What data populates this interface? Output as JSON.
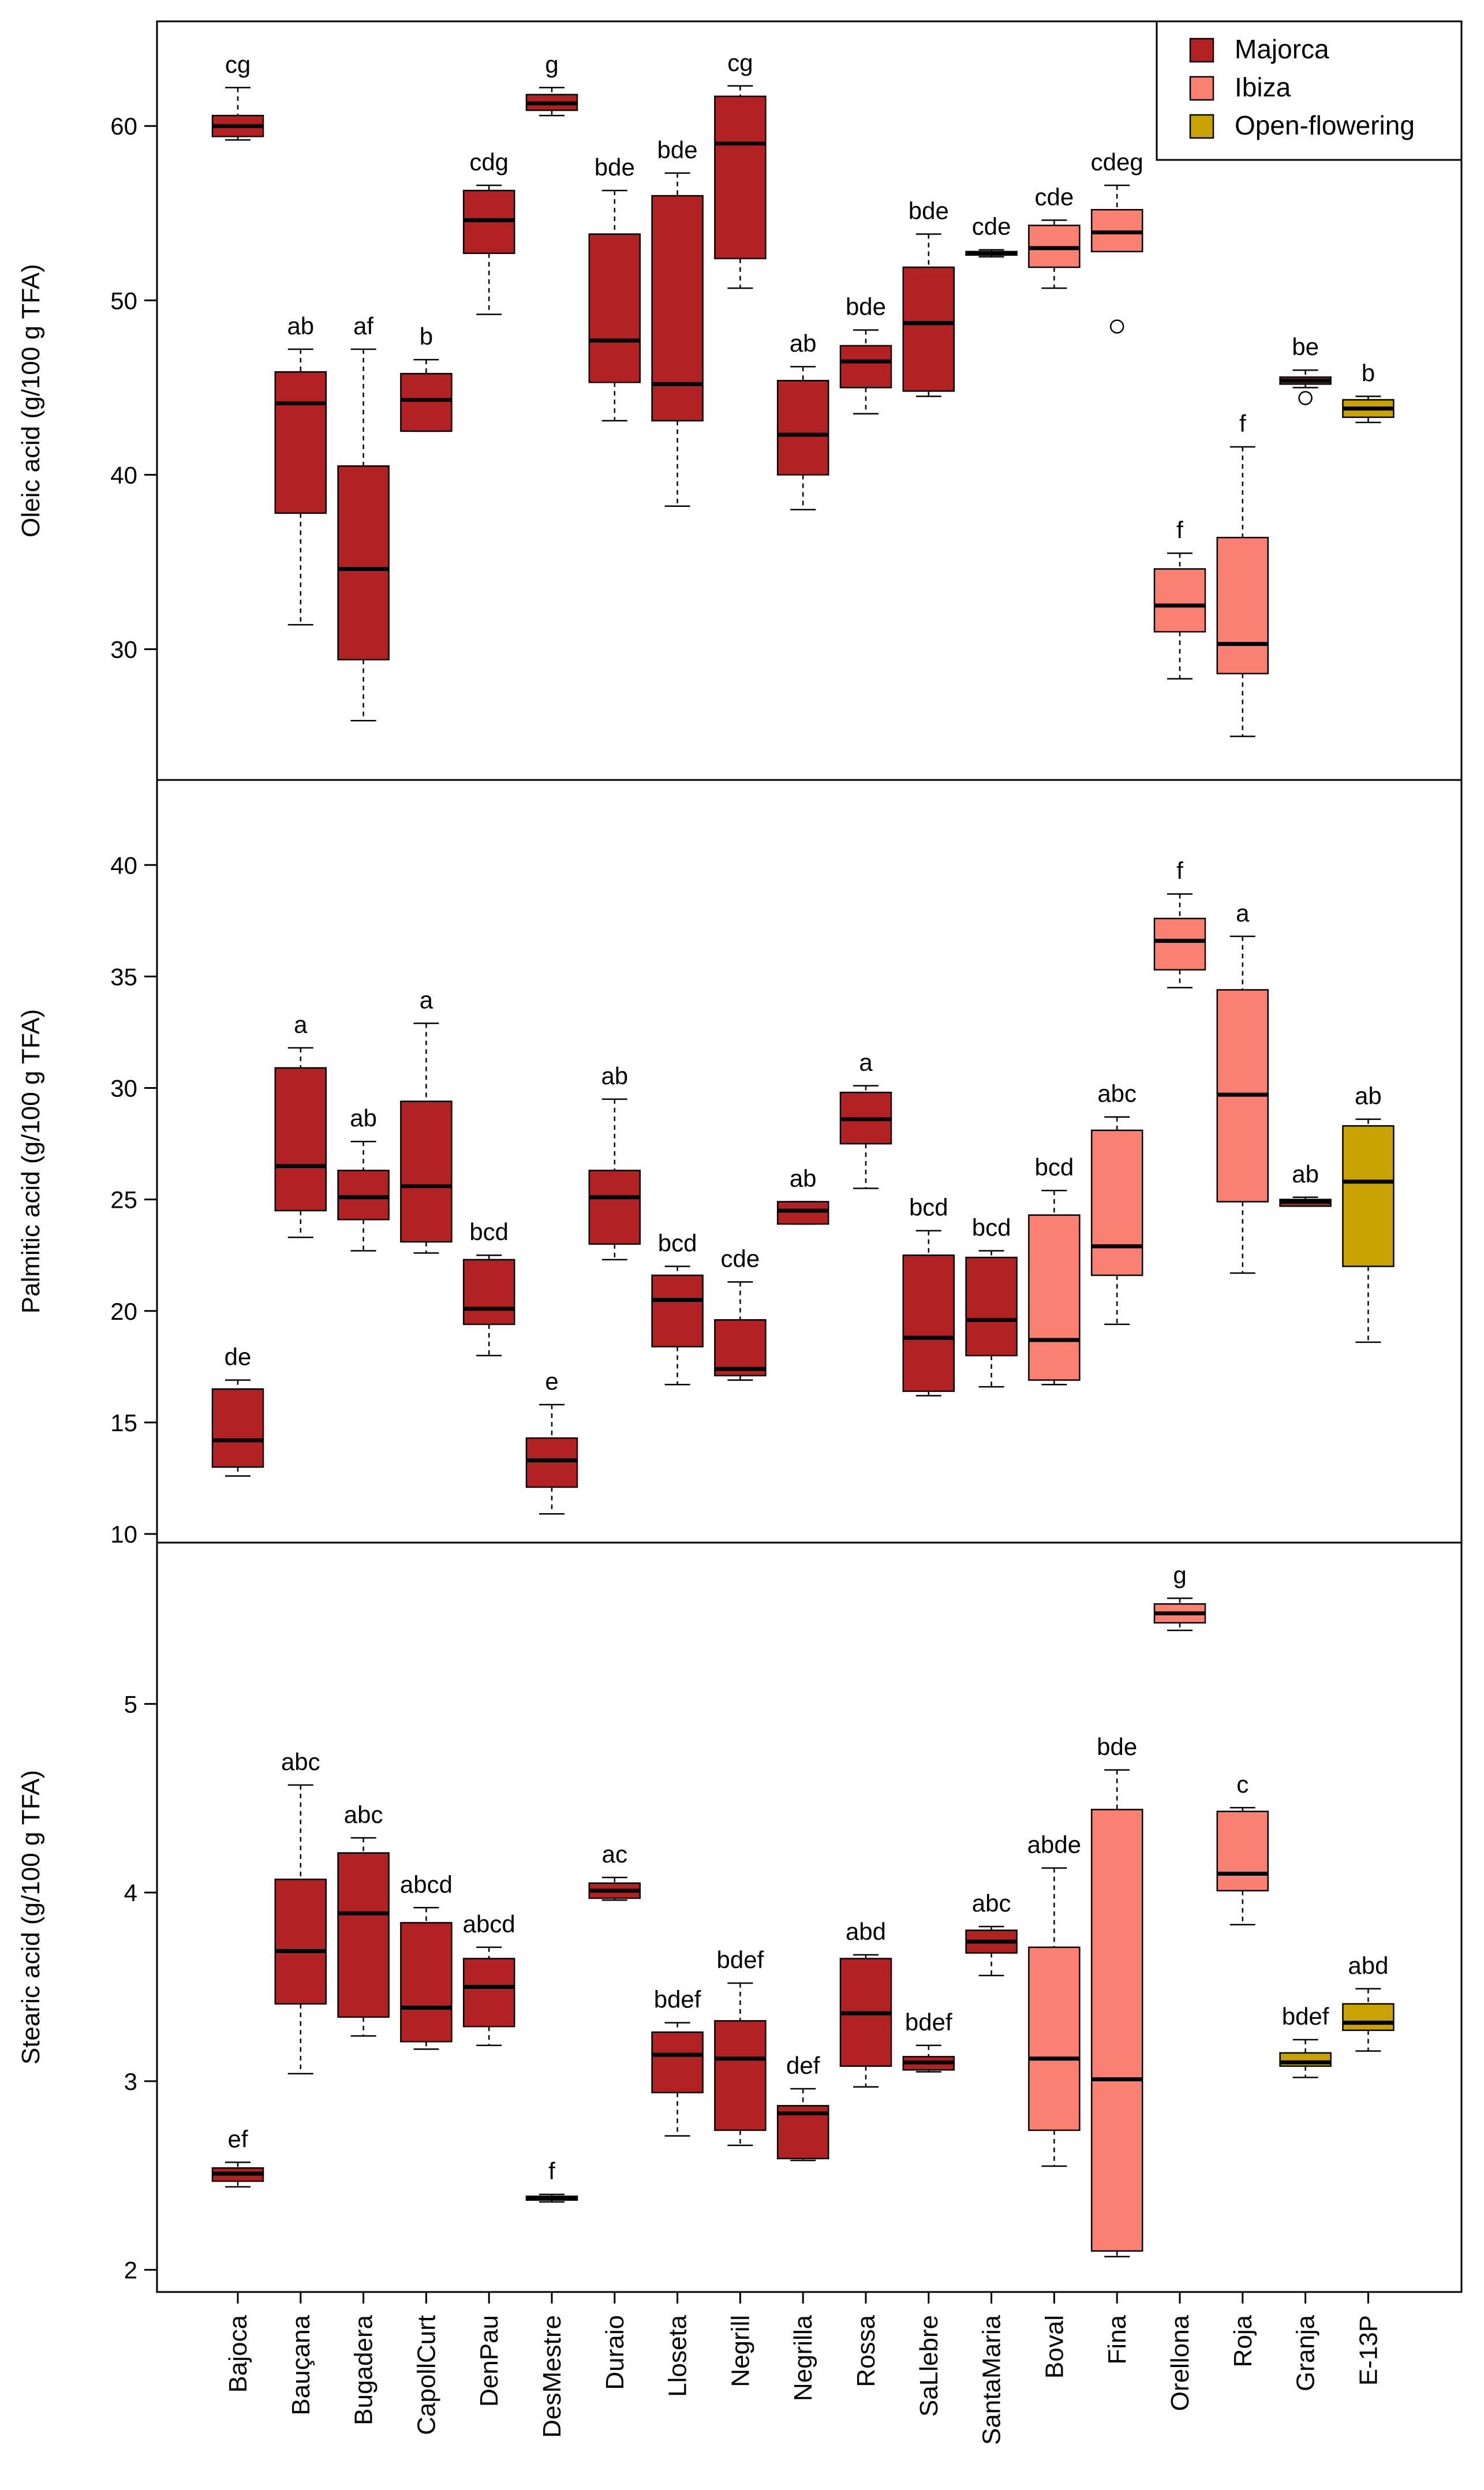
{
  "chart_data": [
    {
      "type": "boxplot",
      "ylabel": "Oleic acid (g/100 g TFA)",
      "ylim": [
        22.5,
        66
      ],
      "yticks": [
        30,
        40,
        50,
        60
      ],
      "grid": false,
      "legend": {
        "placement": "top-right",
        "entries": [
          {
            "name": "Majorca",
            "color": "#b22222"
          },
          {
            "name": "Ibiza",
            "color": "#fa8072"
          },
          {
            "name": "Open-flowering",
            "color": "#c8a200"
          }
        ]
      },
      "boxes": [
        {
          "group": "Majorca",
          "lo": 59.2,
          "q1": 59.4,
          "med": 60.0,
          "q3": 60.6,
          "hi": 62.2,
          "letter": "cg"
        },
        {
          "group": "Majorca",
          "lo": 31.4,
          "q1": 37.8,
          "med": 44.1,
          "q3": 45.9,
          "hi": 47.2,
          "letter": "ab"
        },
        {
          "group": "Majorca",
          "lo": 25.9,
          "q1": 29.4,
          "med": 34.6,
          "q3": 40.5,
          "hi": 47.2,
          "letter": "af"
        },
        {
          "group": "Majorca",
          "lo": 42.5,
          "q1": 42.5,
          "med": 44.3,
          "q3": 45.8,
          "hi": 46.6,
          "letter": "b"
        },
        {
          "group": "Majorca",
          "lo": 49.2,
          "q1": 52.7,
          "med": 54.6,
          "q3": 56.3,
          "hi": 56.6,
          "letter": "cdg"
        },
        {
          "group": "Majorca",
          "lo": 60.6,
          "q1": 60.9,
          "med": 61.3,
          "q3": 61.8,
          "hi": 62.2,
          "letter": "g"
        },
        {
          "group": "Majorca",
          "lo": 43.1,
          "q1": 45.3,
          "med": 47.7,
          "q3": 53.8,
          "hi": 56.3,
          "letter": "bde"
        },
        {
          "group": "Majorca",
          "lo": 38.2,
          "q1": 43.1,
          "med": 45.2,
          "q3": 56.0,
          "hi": 57.3,
          "letter": "bde"
        },
        {
          "group": "Majorca",
          "lo": 50.7,
          "q1": 52.4,
          "med": 59.0,
          "q3": 61.7,
          "hi": 62.3,
          "letter": "cg"
        },
        {
          "group": "Majorca",
          "lo": 38.0,
          "q1": 40.0,
          "med": 42.3,
          "q3": 45.4,
          "hi": 46.2,
          "letter": "ab"
        },
        {
          "group": "Majorca",
          "lo": 43.5,
          "q1": 45.0,
          "med": 46.5,
          "q3": 47.4,
          "hi": 48.3,
          "letter": "bde"
        },
        {
          "group": "Majorca",
          "lo": 44.5,
          "q1": 44.8,
          "med": 48.7,
          "q3": 51.9,
          "hi": 53.8,
          "letter": "bde"
        },
        {
          "group": "Majorca",
          "lo": 52.5,
          "q1": 52.6,
          "med": 52.7,
          "q3": 52.8,
          "hi": 52.9,
          "letter": "cde"
        },
        {
          "group": "Ibiza",
          "lo": 50.7,
          "q1": 51.9,
          "med": 53.0,
          "q3": 54.3,
          "hi": 54.6,
          "letter": "cde"
        },
        {
          "group": "Ibiza",
          "lo": 52.8,
          "q1": 52.8,
          "med": 53.9,
          "q3": 55.2,
          "hi": 56.6,
          "letter": "cdeg",
          "outliers": [
            48.5
          ]
        },
        {
          "group": "Ibiza",
          "lo": 28.3,
          "q1": 31.0,
          "med": 32.5,
          "q3": 34.6,
          "hi": 35.5,
          "letter": "f"
        },
        {
          "group": "Ibiza",
          "lo": 25.0,
          "q1": 28.6,
          "med": 30.3,
          "q3": 36.4,
          "hi": 41.6,
          "letter": "f"
        },
        {
          "group": "Majorca",
          "lo": 45.0,
          "q1": 45.2,
          "med": 45.4,
          "q3": 45.6,
          "hi": 46.0,
          "letter": "be",
          "outliers": [
            44.4
          ]
        },
        {
          "group": "Open-flowering",
          "lo": 43.0,
          "q1": 43.3,
          "med": 43.8,
          "q3": 44.3,
          "hi": 44.5,
          "letter": "b"
        }
      ]
    },
    {
      "type": "boxplot",
      "ylabel": "Palmitic acid (g/100 g TFA)",
      "ylim": [
        10,
        42
      ],
      "yticks": [
        10,
        15,
        20,
        25,
        30,
        35,
        40
      ],
      "grid": false,
      "boxes": [
        {
          "group": "Majorca",
          "lo": 12.6,
          "q1": 13.0,
          "med": 14.2,
          "q3": 16.5,
          "hi": 16.9,
          "letter": "de"
        },
        {
          "group": "Majorca",
          "lo": 23.3,
          "q1": 24.5,
          "med": 26.5,
          "q3": 30.9,
          "hi": 31.8,
          "letter": "a"
        },
        {
          "group": "Majorca",
          "lo": 22.7,
          "q1": 24.1,
          "med": 25.1,
          "q3": 26.3,
          "hi": 27.6,
          "letter": "ab"
        },
        {
          "group": "Majorca",
          "lo": 22.6,
          "q1": 23.1,
          "med": 25.6,
          "q3": 29.4,
          "hi": 32.9,
          "letter": "a"
        },
        {
          "group": "Majorca",
          "lo": 18.0,
          "q1": 19.4,
          "med": 20.1,
          "q3": 22.3,
          "hi": 22.5,
          "letter": "bcd"
        },
        {
          "group": "Majorca",
          "lo": 10.9,
          "q1": 12.1,
          "med": 13.3,
          "q3": 14.3,
          "hi": 15.8,
          "letter": "e"
        },
        {
          "group": "Majorca",
          "lo": 22.3,
          "q1": 23.0,
          "med": 25.1,
          "q3": 26.3,
          "hi": 29.5,
          "letter": "ab"
        },
        {
          "group": "Majorca",
          "lo": 16.7,
          "q1": 18.4,
          "med": 20.5,
          "q3": 21.6,
          "hi": 22.0,
          "letter": "bcd"
        },
        {
          "group": "Majorca",
          "lo": 16.9,
          "q1": 17.1,
          "med": 17.4,
          "q3": 19.6,
          "hi": 21.3,
          "letter": "cde"
        },
        {
          "group": "Majorca",
          "lo": 23.9,
          "q1": 23.9,
          "med": 24.5,
          "q3": 24.9,
          "hi": 24.9,
          "letter": "ab"
        },
        {
          "group": "Majorca",
          "lo": 25.5,
          "q1": 27.5,
          "med": 28.6,
          "q3": 29.8,
          "hi": 30.1,
          "letter": "a"
        },
        {
          "group": "Majorca",
          "lo": 16.2,
          "q1": 16.4,
          "med": 18.8,
          "q3": 22.5,
          "hi": 23.6,
          "letter": "bcd"
        },
        {
          "group": "Majorca",
          "lo": 16.6,
          "q1": 18.0,
          "med": 19.6,
          "q3": 22.4,
          "hi": 22.7,
          "letter": "bcd"
        },
        {
          "group": "Ibiza",
          "lo": 16.7,
          "q1": 16.9,
          "med": 18.7,
          "q3": 24.3,
          "hi": 25.4,
          "letter": "bcd"
        },
        {
          "group": "Ibiza",
          "lo": 19.4,
          "q1": 21.6,
          "med": 22.9,
          "q3": 28.1,
          "hi": 28.7,
          "letter": "abc"
        },
        {
          "group": "Ibiza",
          "lo": 34.5,
          "q1": 35.3,
          "med": 36.6,
          "q3": 37.6,
          "hi": 38.7,
          "letter": "f"
        },
        {
          "group": "Ibiza",
          "lo": 21.7,
          "q1": 24.9,
          "med": 29.7,
          "q3": 34.4,
          "hi": 36.8,
          "letter": "a"
        },
        {
          "group": "Majorca",
          "lo": 24.7,
          "q1": 24.7,
          "med": 24.9,
          "q3": 25.0,
          "hi": 25.1,
          "letter": "ab"
        },
        {
          "group": "Open-flowering",
          "lo": 18.6,
          "q1": 22.0,
          "med": 25.8,
          "q3": 28.3,
          "hi": 28.6,
          "letter": "ab"
        }
      ]
    },
    {
      "type": "boxplot",
      "ylabel": "Stearic acid (g/100 g TFA)",
      "ylim": [
        1.95,
        5.8
      ],
      "yticks": [
        2,
        3,
        4,
        5
      ],
      "grid": false,
      "categories": [
        "Bajoca",
        "Bauçana",
        "Bugadera",
        "CapollCurt",
        "DenPau",
        "DesMestre",
        "Duraio",
        "Lloseta",
        "Negrill",
        "Negrilla",
        "Rossa",
        "SaLlebre",
        "SantaMaria",
        "Boval",
        "Fina",
        "Orellona",
        "Roja",
        "Granja",
        "E-13P"
      ],
      "boxes": [
        {
          "group": "Majorca",
          "lo": 2.44,
          "q1": 2.47,
          "med": 2.51,
          "q3": 2.54,
          "hi": 2.57,
          "letter": "ef"
        },
        {
          "group": "Majorca",
          "lo": 3.04,
          "q1": 3.41,
          "med": 3.69,
          "q3": 4.07,
          "hi": 4.57,
          "letter": "abc"
        },
        {
          "group": "Majorca",
          "lo": 3.24,
          "q1": 3.34,
          "med": 3.89,
          "q3": 4.21,
          "hi": 4.29,
          "letter": "abc"
        },
        {
          "group": "Majorca",
          "lo": 3.17,
          "q1": 3.21,
          "med": 3.39,
          "q3": 3.84,
          "hi": 3.92,
          "letter": "abcd"
        },
        {
          "group": "Majorca",
          "lo": 3.19,
          "q1": 3.29,
          "med": 3.5,
          "q3": 3.65,
          "hi": 3.71,
          "letter": "abcd"
        },
        {
          "group": "Majorca",
          "lo": 2.36,
          "q1": 2.37,
          "med": 2.38,
          "q3": 2.39,
          "hi": 2.4,
          "letter": "f"
        },
        {
          "group": "Majorca",
          "lo": 3.96,
          "q1": 3.97,
          "med": 4.01,
          "q3": 4.05,
          "hi": 4.08,
          "letter": "ac"
        },
        {
          "group": "Majorca",
          "lo": 2.71,
          "q1": 2.94,
          "med": 3.14,
          "q3": 3.26,
          "hi": 3.31,
          "letter": "bdef"
        },
        {
          "group": "Majorca",
          "lo": 2.66,
          "q1": 2.74,
          "med": 3.12,
          "q3": 3.32,
          "hi": 3.52,
          "letter": "bdef"
        },
        {
          "group": "Majorca",
          "lo": 2.58,
          "q1": 2.59,
          "med": 2.83,
          "q3": 2.87,
          "hi": 2.96,
          "letter": "def"
        },
        {
          "group": "Majorca",
          "lo": 2.97,
          "q1": 3.08,
          "med": 3.36,
          "q3": 3.65,
          "hi": 3.67,
          "letter": "abd"
        },
        {
          "group": "Majorca",
          "lo": 3.05,
          "q1": 3.06,
          "med": 3.1,
          "q3": 3.13,
          "hi": 3.19,
          "letter": "bdef"
        },
        {
          "group": "Majorca",
          "lo": 3.56,
          "q1": 3.68,
          "med": 3.74,
          "q3": 3.8,
          "hi": 3.82,
          "letter": "abc"
        },
        {
          "group": "Ibiza",
          "lo": 2.55,
          "q1": 2.74,
          "med": 3.12,
          "q3": 3.71,
          "hi": 4.13,
          "letter": "abde"
        },
        {
          "group": "Ibiza",
          "lo": 2.07,
          "q1": 2.1,
          "med": 3.01,
          "q3": 4.44,
          "hi": 4.65,
          "letter": "bde"
        },
        {
          "group": "Ibiza",
          "lo": 5.39,
          "q1": 5.43,
          "med": 5.48,
          "q3": 5.53,
          "hi": 5.56,
          "letter": "g"
        },
        {
          "group": "Ibiza",
          "lo": 3.83,
          "q1": 4.01,
          "med": 4.1,
          "q3": 4.43,
          "hi": 4.45,
          "letter": "c"
        },
        {
          "group": "Open-flowering",
          "lo": 3.02,
          "q1": 3.08,
          "med": 3.1,
          "q3": 3.15,
          "hi": 3.22,
          "letter": "bdef"
        },
        {
          "group": "Open-flowering",
          "lo": 3.16,
          "q1": 3.27,
          "med": 3.31,
          "q3": 3.41,
          "hi": 3.49,
          "letter": "abd"
        }
      ]
    }
  ]
}
